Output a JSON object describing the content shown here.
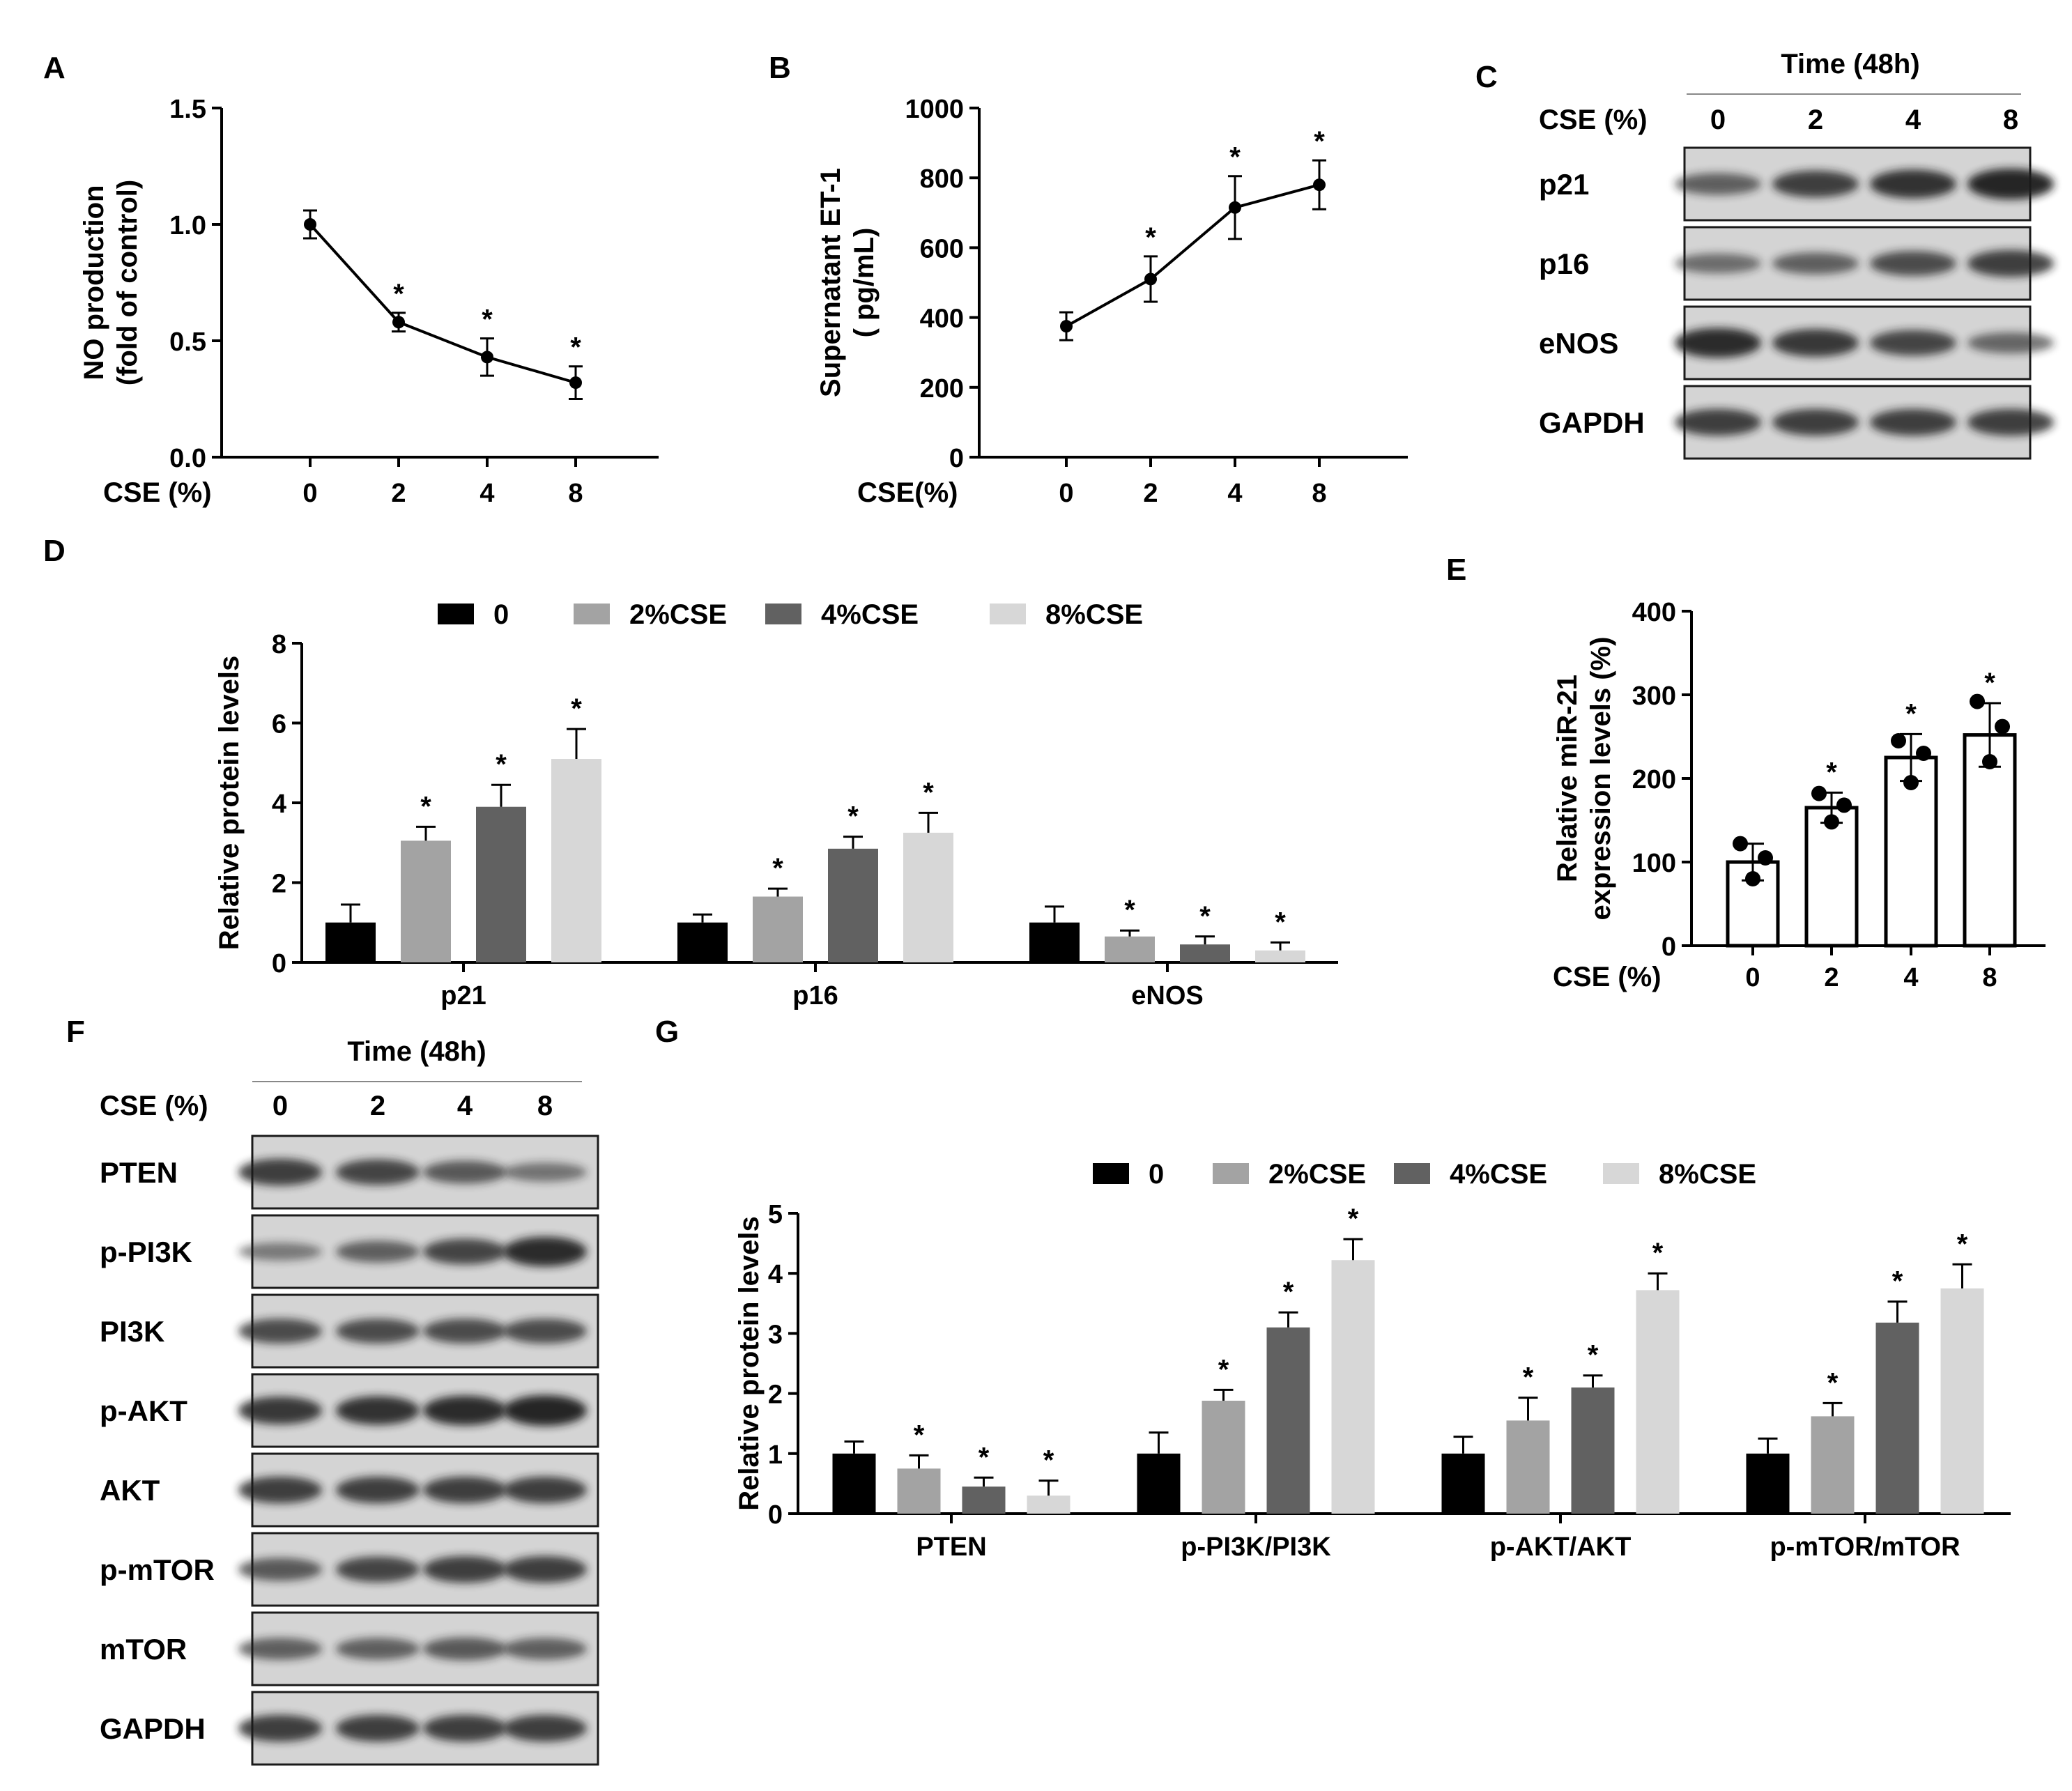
{
  "colors": {
    "axis": "#000000",
    "band": "#1e1e1e",
    "blot_bg": "#d4d4d4",
    "blot_border": "#1a1a1a"
  },
  "chart_data": [
    {
      "panel": "A",
      "type": "line",
      "xlabel": "CSE (%)",
      "ylabel": [
        "NO production",
        "(fold of control)"
      ],
      "categories": [
        "0",
        "2",
        "4",
        "8"
      ],
      "values": [
        1.0,
        0.58,
        0.43,
        0.32
      ],
      "errors": [
        0.06,
        0.04,
        0.08,
        0.07
      ],
      "significant": [
        false,
        true,
        true,
        true
      ],
      "ylim": [
        0,
        1.5
      ],
      "yticks": [
        0.0,
        0.5,
        1.0,
        1.5
      ],
      "ytick_labels": [
        "0.0",
        "0.5",
        "1.0",
        "1.5"
      ]
    },
    {
      "panel": "B",
      "type": "line",
      "xlabel": "CSE(%)",
      "ylabel": [
        "Supernatant ET-1",
        "( pg/mL)"
      ],
      "categories": [
        "0",
        "2",
        "4",
        "8"
      ],
      "values": [
        375,
        510,
        715,
        780
      ],
      "errors": [
        40,
        65,
        90,
        70
      ],
      "significant": [
        false,
        true,
        true,
        true
      ],
      "ylim": [
        0,
        1000
      ],
      "yticks": [
        0,
        200,
        400,
        600,
        800,
        1000
      ],
      "ytick_labels": [
        "0",
        "200",
        "400",
        "600",
        "800",
        "1000"
      ]
    },
    {
      "panel": "D",
      "type": "bar",
      "ylabel": "Relative protein levels",
      "categories": [
        "p21",
        "p16",
        "eNOS"
      ],
      "legend": [
        "0",
        "2%CSE",
        "4%CSE",
        "8%CSE"
      ],
      "series_colors": [
        "#000000",
        "#a3a3a3",
        "#616161",
        "#d7d7d7"
      ],
      "series": [
        {
          "name": "0",
          "values": [
            1.0,
            1.0,
            1.0
          ],
          "errors": [
            0.45,
            0.2,
            0.4
          ],
          "significant": [
            false,
            false,
            false
          ]
        },
        {
          "name": "2%CSE",
          "values": [
            3.05,
            1.65,
            0.65
          ],
          "errors": [
            0.35,
            0.2,
            0.15
          ],
          "significant": [
            true,
            true,
            true
          ]
        },
        {
          "name": "4%CSE",
          "values": [
            3.9,
            2.85,
            0.45
          ],
          "errors": [
            0.55,
            0.3,
            0.2
          ],
          "significant": [
            true,
            true,
            true
          ]
        },
        {
          "name": "8%CSE",
          "values": [
            5.1,
            3.25,
            0.3
          ],
          "errors": [
            0.75,
            0.5,
            0.2
          ],
          "significant": [
            true,
            true,
            true
          ]
        }
      ],
      "ylim": [
        0,
        8
      ],
      "yticks": [
        0,
        2,
        4,
        6,
        8
      ],
      "ytick_labels": [
        "0",
        "2",
        "4",
        "6",
        "8"
      ]
    },
    {
      "panel": "E",
      "type": "bar",
      "xlabel": "CSE (%)",
      "ylabel": [
        "Relative miR-21",
        "expression levels (%)"
      ],
      "categories": [
        "0",
        "2",
        "4",
        "8"
      ],
      "values": [
        100,
        165,
        225,
        252
      ],
      "errors": [
        22,
        18,
        28,
        38
      ],
      "significant": [
        false,
        true,
        true,
        true
      ],
      "points": [
        [
          122,
          105,
          80
        ],
        [
          182,
          168,
          148
        ],
        [
          245,
          230,
          195
        ],
        [
          292,
          262,
          220
        ]
      ],
      "ylim": [
        0,
        400
      ],
      "yticks": [
        0,
        100,
        200,
        300,
        400
      ],
      "ytick_labels": [
        "0",
        "100",
        "200",
        "300",
        "400"
      ]
    },
    {
      "panel": "G",
      "type": "bar",
      "ylabel": "Relative protein levels",
      "categories": [
        "PTEN",
        "p-PI3K/PI3K",
        "p-AKT/AKT",
        "p-mTOR/mTOR"
      ],
      "legend": [
        "0",
        "2%CSE",
        "4%CSE",
        "8%CSE"
      ],
      "series_colors": [
        "#000000",
        "#a3a3a3",
        "#616161",
        "#d7d7d7"
      ],
      "series": [
        {
          "name": "0",
          "values": [
            1.0,
            1.0,
            1.0,
            1.0
          ],
          "errors": [
            0.2,
            0.35,
            0.28,
            0.25
          ],
          "significant": [
            false,
            false,
            false,
            false
          ]
        },
        {
          "name": "2%CSE",
          "values": [
            0.75,
            1.88,
            1.55,
            1.62
          ],
          "errors": [
            0.22,
            0.18,
            0.38,
            0.22
          ],
          "significant": [
            true,
            true,
            true,
            true
          ]
        },
        {
          "name": "4%CSE",
          "values": [
            0.45,
            3.1,
            2.1,
            3.18
          ],
          "errors": [
            0.15,
            0.25,
            0.2,
            0.35
          ],
          "significant": [
            true,
            true,
            true,
            true
          ]
        },
        {
          "name": "8%CSE",
          "values": [
            0.3,
            4.22,
            3.72,
            3.75
          ],
          "errors": [
            0.25,
            0.35,
            0.28,
            0.4
          ],
          "significant": [
            true,
            true,
            true,
            true
          ]
        }
      ],
      "ylim": [
        0,
        5
      ],
      "yticks": [
        0,
        1,
        2,
        3,
        4,
        5
      ],
      "ytick_labels": [
        "0",
        "1",
        "2",
        "3",
        "4",
        "5"
      ]
    }
  ],
  "blots": [
    {
      "panel": "C",
      "header": "Time (48h)",
      "row_label": "CSE (%)",
      "lanes": [
        "0",
        "2",
        "4",
        "8"
      ],
      "proteins": [
        "p21",
        "p16",
        "eNOS",
        "GAPDH"
      ],
      "intensity": [
        [
          0.55,
          0.8,
          0.9,
          1.0
        ],
        [
          0.45,
          0.55,
          0.7,
          0.8
        ],
        [
          0.95,
          0.85,
          0.75,
          0.5
        ],
        [
          0.8,
          0.8,
          0.8,
          0.8
        ]
      ]
    },
    {
      "panel": "F",
      "header": "Time (48h)",
      "row_label": "CSE (%)",
      "lanes": [
        "0",
        "2",
        "4",
        "8"
      ],
      "proteins": [
        "PTEN",
        "p-PI3K",
        "PI3K",
        "p-AKT",
        "AKT",
        "p-mTOR",
        "mTOR",
        "GAPDH"
      ],
      "intensity": [
        [
          0.8,
          0.75,
          0.6,
          0.4
        ],
        [
          0.35,
          0.55,
          0.75,
          0.95
        ],
        [
          0.7,
          0.7,
          0.7,
          0.7
        ],
        [
          0.85,
          0.9,
          0.95,
          1.0
        ],
        [
          0.8,
          0.8,
          0.8,
          0.8
        ],
        [
          0.6,
          0.75,
          0.8,
          0.8
        ],
        [
          0.55,
          0.55,
          0.6,
          0.55
        ],
        [
          0.8,
          0.8,
          0.8,
          0.8
        ]
      ]
    }
  ],
  "panel_letters": [
    "A",
    "B",
    "C",
    "D",
    "E",
    "F",
    "G"
  ],
  "significance_marker": "*"
}
